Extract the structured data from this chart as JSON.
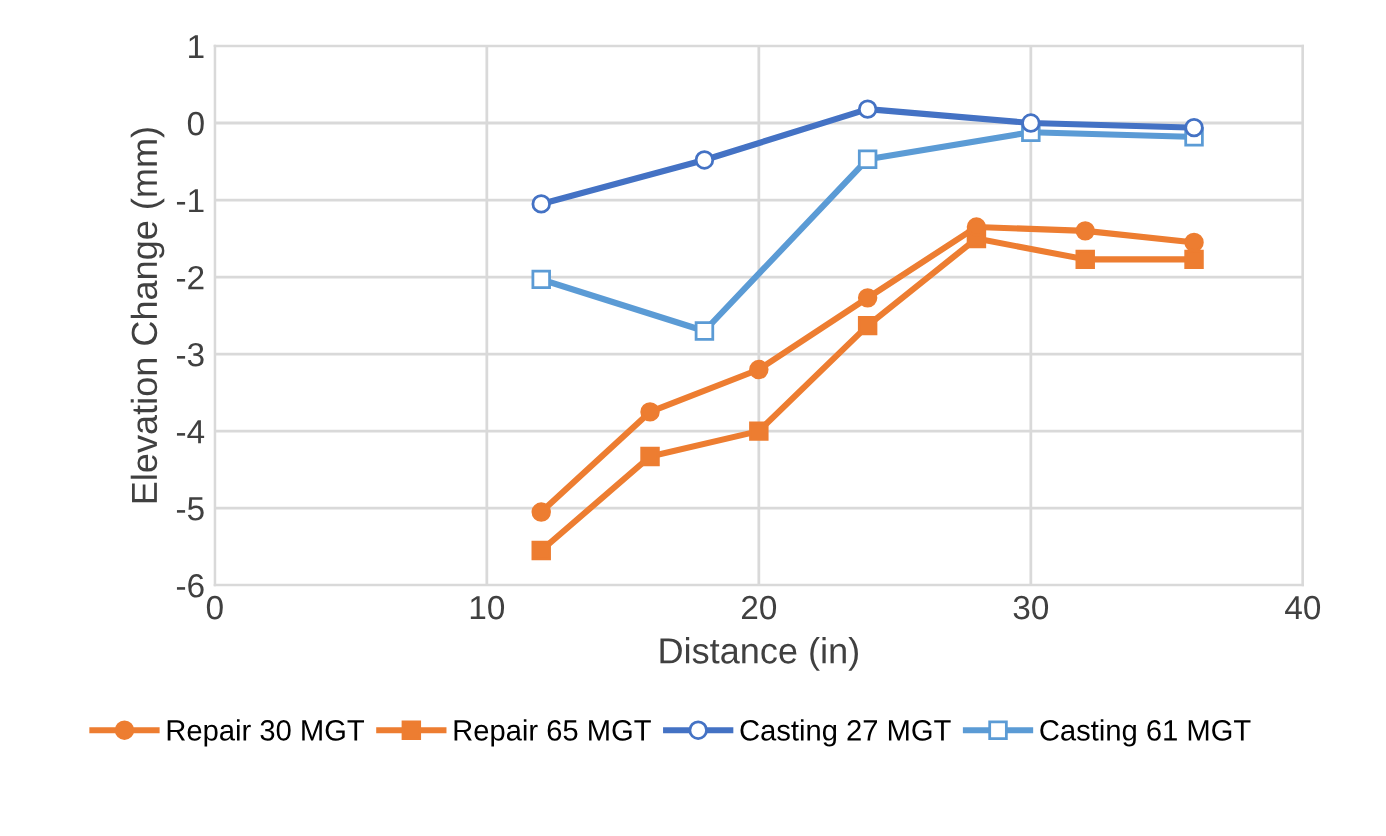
{
  "chart_data": {
    "type": "line",
    "xlabel": "Distance (in)",
    "ylabel": "Elevation Change (mm)",
    "xlim": [
      0,
      40
    ],
    "xticks": [
      0,
      10,
      20,
      30,
      40
    ],
    "ylim": [
      -6,
      1
    ],
    "yticks": [
      -6,
      -5,
      -4,
      -3,
      -2,
      -1,
      0,
      1
    ],
    "grid": true,
    "legend": "bottom",
    "series": [
      {
        "name": "Repair 30 MGT",
        "color": "#ed7d31",
        "marker": "circle",
        "x": [
          12,
          16,
          20,
          24,
          28,
          32,
          36
        ],
        "values": [
          -5.05,
          -3.75,
          -3.2,
          -2.27,
          -1.35,
          -1.4,
          -1.55
        ]
      },
      {
        "name": "Repair 65 MGT",
        "color": "#ed7d31",
        "marker": "square",
        "x": [
          12,
          16,
          20,
          24,
          28,
          32,
          36
        ],
        "values": [
          -5.55,
          -4.33,
          -4.0,
          -2.63,
          -1.5,
          -1.77,
          -1.77
        ]
      },
      {
        "name": "Casting 27 MGT",
        "color": "#4472c4",
        "marker": "circle",
        "x": [
          12,
          18,
          24,
          30,
          36
        ],
        "values": [
          -1.05,
          -0.48,
          0.18,
          0.0,
          -0.06
        ]
      },
      {
        "name": "Casting 61 MGT",
        "color": "#5b9bd5",
        "marker": "square",
        "x": [
          12,
          18,
          24,
          30,
          36
        ],
        "values": [
          -2.03,
          -2.7,
          -0.47,
          -0.12,
          -0.18
        ]
      }
    ]
  }
}
